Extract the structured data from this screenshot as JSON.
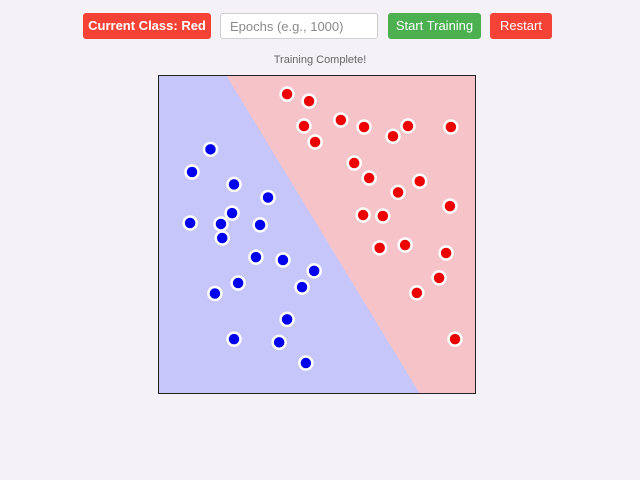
{
  "toolbar": {
    "current_class_label": "Current Class: Red",
    "epochs_placeholder": "Epochs (e.g., 1000)",
    "epochs_value": "",
    "start_label": "Start Training",
    "restart_label": "Restart"
  },
  "status": {
    "text": "Training Complete!"
  },
  "colors": {
    "class_button": "#f44336",
    "start_button": "#4caf50",
    "restart_button": "#f44336",
    "blue_region": "#c6c6fb",
    "red_region": "#f6c3c8",
    "blue_point": "#0000ee",
    "red_point": "#ee0000"
  },
  "chart_data": {
    "type": "scatter",
    "title": "",
    "xlabel": "",
    "ylabel": "",
    "xlim": [
      0,
      1
    ],
    "ylim": [
      0,
      1
    ],
    "grid": false,
    "decision_boundary": {
      "x_at_top": 0.214,
      "x_at_bottom": 0.824
    },
    "series": [
      {
        "class": "blue",
        "color": "#0000ee",
        "points": [
          [
            0.165,
            0.767
          ],
          [
            0.107,
            0.696
          ],
          [
            0.239,
            0.657
          ],
          [
            0.346,
            0.616
          ],
          [
            0.101,
            0.536
          ],
          [
            0.198,
            0.533
          ],
          [
            0.233,
            0.567
          ],
          [
            0.321,
            0.53
          ],
          [
            0.202,
            0.489
          ],
          [
            0.308,
            0.429
          ],
          [
            0.393,
            0.42
          ],
          [
            0.491,
            0.386
          ],
          [
            0.252,
            0.348
          ],
          [
            0.179,
            0.315
          ],
          [
            0.453,
            0.335
          ],
          [
            0.406,
            0.234
          ],
          [
            0.239,
            0.172
          ],
          [
            0.381,
            0.162
          ],
          [
            0.465,
            0.097
          ]
        ]
      },
      {
        "class": "red",
        "color": "#ee0000",
        "points": [
          [
            0.406,
            0.94
          ],
          [
            0.475,
            0.918
          ],
          [
            0.459,
            0.84
          ],
          [
            0.575,
            0.859
          ],
          [
            0.648,
            0.837
          ],
          [
            0.786,
            0.84
          ],
          [
            0.921,
            0.837
          ],
          [
            0.494,
            0.79
          ],
          [
            0.739,
            0.808
          ],
          [
            0.617,
            0.724
          ],
          [
            0.664,
            0.677
          ],
          [
            0.755,
            0.632
          ],
          [
            0.823,
            0.667
          ],
          [
            0.918,
            0.589
          ],
          [
            0.645,
            0.561
          ],
          [
            0.707,
            0.558
          ],
          [
            0.697,
            0.458
          ],
          [
            0.777,
            0.467
          ],
          [
            0.906,
            0.442
          ],
          [
            0.884,
            0.364
          ],
          [
            0.814,
            0.317
          ],
          [
            0.934,
            0.172
          ]
        ]
      }
    ]
  }
}
